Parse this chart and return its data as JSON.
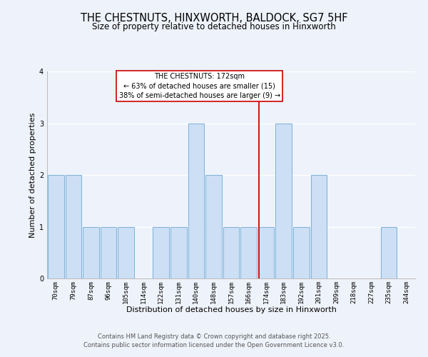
{
  "title": "THE CHESTNUTS, HINXWORTH, BALDOCK, SG7 5HF",
  "subtitle": "Size of property relative to detached houses in Hinxworth",
  "xlabel": "Distribution of detached houses by size in Hinxworth",
  "ylabel": "Number of detached properties",
  "bins": [
    "70sqm",
    "79sqm",
    "87sqm",
    "96sqm",
    "105sqm",
    "114sqm",
    "122sqm",
    "131sqm",
    "140sqm",
    "148sqm",
    "157sqm",
    "166sqm",
    "174sqm",
    "183sqm",
    "192sqm",
    "201sqm",
    "209sqm",
    "218sqm",
    "227sqm",
    "235sqm",
    "244sqm"
  ],
  "counts": [
    2,
    2,
    1,
    1,
    1,
    0,
    1,
    1,
    3,
    2,
    1,
    1,
    1,
    3,
    1,
    2,
    0,
    0,
    0,
    1,
    0
  ],
  "bar_color": "#ccdff5",
  "bar_edge_color": "#7ab0d8",
  "ref_line_color": "#cc0000",
  "annotation_box_edge": "#cc0000",
  "annotation_box_face": "#ffffff",
  "annotation_title": "THE CHESTNUTS: 172sqm",
  "annotation_line1": "← 63% of detached houses are smaller (15)",
  "annotation_line2": "38% of semi-detached houses are larger (9) →",
  "ylim": [
    0,
    4
  ],
  "yticks": [
    0,
    1,
    2,
    3,
    4
  ],
  "bg_color": "#eef2fa",
  "grid_color": "#ffffff",
  "title_fontsize": 10.5,
  "subtitle_fontsize": 8.5,
  "axis_label_fontsize": 8,
  "tick_fontsize": 6.5,
  "annotation_fontsize": 7,
  "footer_fontsize": 6,
  "footer1": "Contains HM Land Registry data © Crown copyright and database right 2025.",
  "footer2": "Contains public sector information licensed under the Open Government Licence v3.0."
}
